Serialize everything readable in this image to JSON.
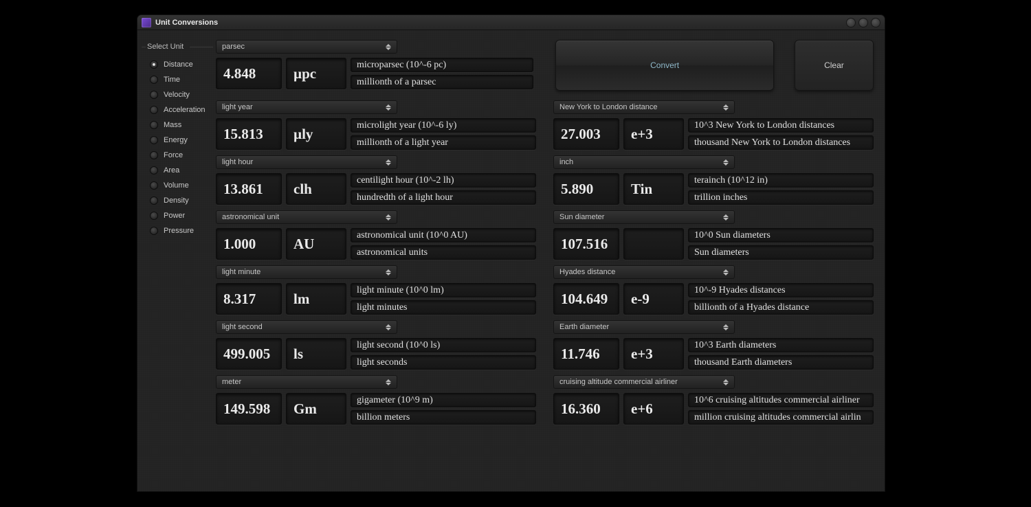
{
  "window": {
    "title": "Unit Conversions"
  },
  "sidebar": {
    "group_label": "Select Unit",
    "items": [
      {
        "label": "Distance",
        "selected": true
      },
      {
        "label": "Time",
        "selected": false
      },
      {
        "label": "Velocity",
        "selected": false
      },
      {
        "label": "Acceleration",
        "selected": false
      },
      {
        "label": "Mass",
        "selected": false
      },
      {
        "label": "Energy",
        "selected": false
      },
      {
        "label": "Force",
        "selected": false
      },
      {
        "label": "Area",
        "selected": false
      },
      {
        "label": "Volume",
        "selected": false
      },
      {
        "label": "Density",
        "selected": false
      },
      {
        "label": "Power",
        "selected": false
      },
      {
        "label": "Pressure",
        "selected": false
      }
    ]
  },
  "buttons": {
    "convert": "Convert",
    "clear": "Clear"
  },
  "left": [
    {
      "select": "parsec",
      "value": "4.848",
      "symbol": "µpc",
      "desc1": "microparsec  (10^-6 pc)",
      "desc2": "millionth of a parsec"
    },
    {
      "select": "light year",
      "value": "15.813",
      "symbol": "µly",
      "desc1": "microlight year  (10^-6 ly)",
      "desc2": "millionth of a light year"
    },
    {
      "select": "light hour",
      "value": "13.861",
      "symbol": "clh",
      "desc1": "centilight hour  (10^-2 lh)",
      "desc2": "hundredth of a light hour"
    },
    {
      "select": "astronomical unit",
      "value": "1.000",
      "symbol": "AU",
      "desc1": "astronomical unit  (10^0 AU)",
      "desc2": "astronomical units"
    },
    {
      "select": "light minute",
      "value": "8.317",
      "symbol": "lm",
      "desc1": "light minute  (10^0 lm)",
      "desc2": "light minutes"
    },
    {
      "select": "light second",
      "value": "499.005",
      "symbol": "ls",
      "desc1": "light second  (10^0 ls)",
      "desc2": "light seconds"
    },
    {
      "select": "meter",
      "value": "149.598",
      "symbol": "Gm",
      "desc1": "gigameter  (10^9 m)",
      "desc2": "billion meters"
    }
  ],
  "right": [
    {
      "select": "New York to London distance",
      "value": "27.003",
      "symbol": "e+3",
      "desc1": "10^3 New York to London distances",
      "desc2": "thousand New York to London distances"
    },
    {
      "select": "inch",
      "value": "5.890",
      "symbol": "Tin",
      "desc1": "terainch  (10^12 in)",
      "desc2": "trillion inches"
    },
    {
      "select": "Sun diameter",
      "value": "107.516",
      "symbol": "",
      "desc1": "10^0 Sun diameters",
      "desc2": "Sun diameters"
    },
    {
      "select": "Hyades distance",
      "value": "104.649",
      "symbol": "e-9",
      "desc1": "10^-9 Hyades distances",
      "desc2": "billionth of a Hyades distance"
    },
    {
      "select": "Earth diameter",
      "value": "11.746",
      "symbol": "e+3",
      "desc1": "10^3 Earth diameters",
      "desc2": "thousand Earth diameters"
    },
    {
      "select": "cruising altitude commercial airliner",
      "value": "16.360",
      "symbol": "e+6",
      "desc1": "10^6 cruising altitudes commercial airliner",
      "desc2": "million cruising altitudes commercial airlin"
    }
  ],
  "colors": {
    "window_bg": "#232323",
    "accent_text": "#8fb8c9",
    "field_bg": "#181818",
    "text": "#e8e8e8"
  }
}
